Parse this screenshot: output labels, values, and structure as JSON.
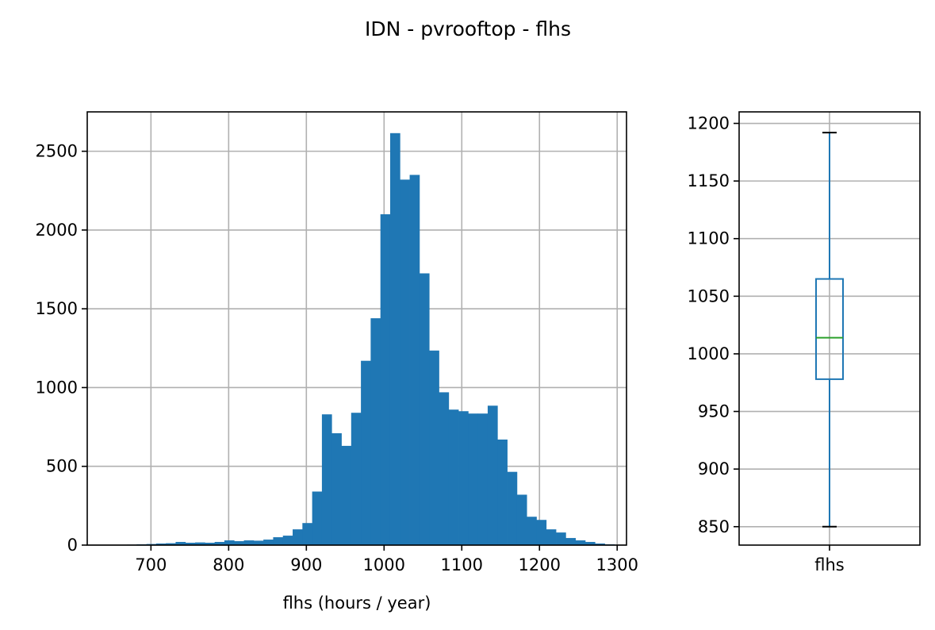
{
  "figure": {
    "title": "IDN - pvrooftop - flhs"
  },
  "colors": {
    "bar": "#1f77b4",
    "box": "#1f77b4",
    "median": "#2ca02c",
    "grid": "#b0b0b0",
    "axes": "#000000"
  },
  "chart_data": [
    {
      "type": "bar",
      "subtype": "histogram",
      "title": "",
      "xlabel": "flhs (hours / year)",
      "ylabel": "",
      "xlim": [
        618,
        1312
      ],
      "ylim": [
        0,
        2750
      ],
      "grid": true,
      "bin_width": 12.55,
      "bin_edges_start": 669,
      "values": [
        3,
        5,
        7,
        10,
        12,
        20,
        15,
        17,
        15,
        20,
        30,
        25,
        30,
        28,
        35,
        50,
        60,
        100,
        140,
        340,
        830,
        710,
        630,
        840,
        1170,
        1440,
        2100,
        2615,
        2320,
        2350,
        1725,
        1235,
        970,
        860,
        850,
        835,
        835,
        885,
        670,
        465,
        320,
        180,
        160,
        100,
        80,
        45,
        30,
        20,
        10,
        5,
        2
      ],
      "x_ticks": [
        "700",
        "800",
        "900",
        "1000",
        "1100",
        "1200",
        "1300"
      ],
      "x_tick_values": [
        700,
        800,
        900,
        1000,
        1100,
        1200,
        1300
      ],
      "y_ticks": [
        "0",
        "500",
        "1000",
        "1500",
        "2000",
        "2500"
      ],
      "y_tick_values": [
        0,
        500,
        1000,
        1500,
        2000,
        2500
      ]
    },
    {
      "type": "box",
      "title": "",
      "categories": [
        "flhs"
      ],
      "ylim": [
        834,
        1210
      ],
      "grid": true,
      "whisker_low": 850,
      "q1": 978,
      "median": 1014,
      "q3": 1065,
      "whisker_high": 1192,
      "y_ticks": [
        "850",
        "900",
        "950",
        "1000",
        "1050",
        "1100",
        "1150",
        "1200"
      ],
      "y_tick_values": [
        850,
        900,
        950,
        1000,
        1050,
        1100,
        1150,
        1200
      ]
    }
  ]
}
